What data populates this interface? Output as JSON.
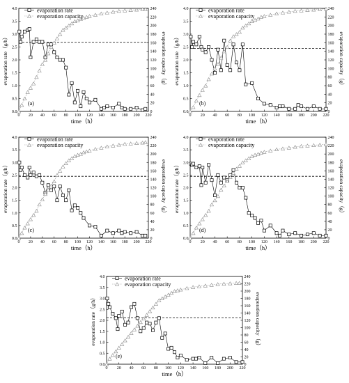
{
  "chart_data": [
    {
      "type": "line",
      "panel_label": "(a)",
      "xlabel": "time（h）",
      "ylabel": "evaporation rate（g/h）",
      "y2label": "evaporation capacity（g）",
      "xlim": [
        0,
        220
      ],
      "ylim": [
        0,
        4.0
      ],
      "y2lim": [
        0,
        240
      ],
      "xticks": [
        0,
        20,
        40,
        60,
        80,
        100,
        120,
        140,
        160,
        180,
        200,
        220
      ],
      "yticks": [
        0.0,
        0.5,
        1.0,
        1.5,
        2.0,
        2.5,
        3.0,
        3.5,
        4.0
      ],
      "y2ticks": [
        0,
        20,
        40,
        60,
        80,
        100,
        120,
        140,
        160,
        180,
        200,
        220,
        240
      ],
      "legend": [
        "evaporation rate",
        "evaporation capacity"
      ],
      "reference_line": 2.68,
      "series": [
        {
          "name": "evaporation rate",
          "axis": "left",
          "marker": "square",
          "x": [
            1,
            3,
            5,
            10,
            15,
            18,
            20,
            25,
            30,
            35,
            40,
            45,
            50,
            55,
            60,
            65,
            70,
            75,
            80,
            85,
            90,
            95,
            100,
            105,
            110,
            115,
            120,
            130,
            140,
            145,
            150,
            160,
            170,
            175,
            180,
            190,
            200,
            210,
            215
          ],
          "y": [
            3.1,
            2.7,
            2.9,
            3.1,
            3.15,
            3.2,
            2.1,
            2.7,
            2.8,
            2.7,
            2.7,
            2.1,
            2.6,
            2.6,
            2.3,
            2.1,
            2.0,
            2.0,
            1.7,
            0.65,
            1.1,
            0.35,
            0.8,
            0.2,
            0.75,
            0.5,
            0.35,
            0.45,
            0.1,
            0.15,
            0.2,
            0.15,
            0.3,
            0.15,
            0.1,
            0.1,
            0.15,
            0.05,
            0.1
          ]
        },
        {
          "name": "evaporation capacity",
          "axis": "right",
          "marker": "triangle",
          "x": [
            0,
            5,
            10,
            15,
            20,
            25,
            30,
            35,
            40,
            45,
            50,
            55,
            60,
            65,
            70,
            75,
            80,
            85,
            90,
            95,
            100,
            105,
            110,
            115,
            120,
            130,
            140,
            150,
            160,
            170,
            180,
            190,
            200,
            210,
            215
          ],
          "y": [
            0,
            15,
            30,
            45,
            55,
            65,
            80,
            95,
            110,
            120,
            135,
            150,
            160,
            170,
            180,
            190,
            195,
            200,
            205,
            210,
            212,
            215,
            218,
            220,
            222,
            225,
            228,
            230,
            232,
            234,
            235,
            236,
            237,
            238,
            238
          ]
        }
      ]
    },
    {
      "type": "line",
      "panel_label": "(b)",
      "xlabel": "time（h）",
      "ylabel": "evaporation rate（g/h）",
      "y2label": "evaporation capacity（g）",
      "xlim": [
        0,
        220
      ],
      "ylim": [
        0,
        4.0
      ],
      "y2lim": [
        0,
        240
      ],
      "xticks": [
        0,
        20,
        40,
        60,
        80,
        100,
        120,
        140,
        160,
        180,
        200,
        220
      ],
      "yticks": [
        0.0,
        0.5,
        1.0,
        1.5,
        2.0,
        2.5,
        3.0,
        3.5,
        4.0
      ],
      "y2ticks": [
        0,
        20,
        40,
        60,
        80,
        100,
        120,
        140,
        160,
        180,
        200,
        220,
        240
      ],
      "legend": [
        "evaporation rate",
        "evaporation capacity"
      ],
      "reference_line": 2.45,
      "series": [
        {
          "name": "evaporation rate",
          "axis": "left",
          "marker": "square",
          "x": [
            1,
            3,
            5,
            10,
            15,
            18,
            20,
            25,
            30,
            35,
            40,
            45,
            50,
            55,
            60,
            65,
            70,
            75,
            80,
            85,
            90,
            100,
            110,
            120,
            130,
            140,
            145,
            150,
            160,
            170,
            175,
            180,
            190,
            200,
            210,
            220
          ],
          "y": [
            2.9,
            2.5,
            2.7,
            2.6,
            2.9,
            2.5,
            2.4,
            2.3,
            2.5,
            2.0,
            1.5,
            2.4,
            1.6,
            2.75,
            1.8,
            1.6,
            2.6,
            1.9,
            1.6,
            2.6,
            1.05,
            1.1,
            0.5,
            0.3,
            0.25,
            0.15,
            0.2,
            0.2,
            0.1,
            0.1,
            0.25,
            0.2,
            0.1,
            0.2,
            0.1,
            0.1
          ]
        },
        {
          "name": "evaporation capacity",
          "axis": "right",
          "marker": "triangle",
          "x": [
            0,
            5,
            10,
            15,
            20,
            25,
            30,
            35,
            40,
            45,
            50,
            55,
            60,
            65,
            70,
            75,
            80,
            85,
            90,
            95,
            100,
            105,
            110,
            115,
            120,
            130,
            140,
            150,
            160,
            170,
            180,
            190,
            200,
            210,
            220
          ],
          "y": [
            0,
            10,
            25,
            38,
            50,
            60,
            75,
            88,
            100,
            110,
            125,
            140,
            150,
            165,
            175,
            180,
            185,
            195,
            200,
            205,
            210,
            213,
            216,
            220,
            222,
            225,
            228,
            230,
            232,
            234,
            235,
            236,
            237,
            238,
            239
          ]
        }
      ]
    },
    {
      "type": "line",
      "panel_label": "(c)",
      "xlabel": "time（h）",
      "ylabel": "evaporation rate（g/h）",
      "y2label": "evaporation capacity（g）",
      "xlim": [
        0,
        220
      ],
      "ylim": [
        0,
        4.0
      ],
      "y2lim": [
        0,
        240
      ],
      "xticks": [
        0,
        20,
        40,
        60,
        80,
        100,
        120,
        140,
        160,
        180,
        200,
        220
      ],
      "yticks": [
        0.0,
        0.5,
        1.0,
        1.5,
        2.0,
        2.5,
        3.0,
        3.5,
        4.0
      ],
      "y2ticks": [
        0,
        20,
        40,
        60,
        80,
        100,
        120,
        140,
        160,
        180,
        200,
        220,
        240
      ],
      "legend": [
        "evaporation rate",
        "evaporation capacity"
      ],
      "reference_line": 2.45,
      "series": [
        {
          "name": "evaporation rate",
          "axis": "left",
          "marker": "square",
          "x": [
            1,
            3,
            5,
            10,
            15,
            18,
            20,
            25,
            30,
            35,
            40,
            45,
            50,
            55,
            60,
            65,
            70,
            75,
            80,
            85,
            90,
            95,
            100,
            105,
            110,
            120,
            130,
            140,
            150,
            160,
            170,
            175,
            180,
            190,
            200,
            210,
            215
          ],
          "y": [
            3.0,
            2.7,
            2.8,
            2.5,
            2.4,
            2.8,
            2.5,
            2.6,
            2.45,
            2.5,
            2.2,
            1.8,
            2.1,
            1.9,
            2.05,
            1.5,
            2.05,
            1.7,
            1.5,
            1.9,
            1.1,
            1.3,
            1.2,
            1.0,
            0.8,
            0.5,
            0.45,
            0.1,
            0.3,
            0.2,
            0.3,
            0.2,
            0.25,
            0.2,
            0.25,
            0.1,
            0.1
          ]
        },
        {
          "name": "evaporation capacity",
          "axis": "right",
          "marker": "triangle",
          "x": [
            0,
            5,
            10,
            15,
            20,
            25,
            30,
            35,
            40,
            45,
            50,
            55,
            60,
            65,
            70,
            75,
            80,
            85,
            90,
            95,
            100,
            105,
            110,
            115,
            120,
            130,
            140,
            150,
            160,
            170,
            180,
            190,
            200,
            210,
            215
          ],
          "y": [
            0,
            12,
            25,
            35,
            45,
            55,
            65,
            80,
            92,
            105,
            115,
            125,
            135,
            150,
            160,
            170,
            178,
            185,
            190,
            195,
            198,
            200,
            204,
            206,
            208,
            212,
            215,
            218,
            220,
            222,
            224,
            225,
            226,
            227,
            228
          ]
        }
      ]
    },
    {
      "type": "line",
      "panel_label": "(d)",
      "xlabel": "time（h）",
      "ylabel": "evaporation rate（g/h）",
      "y2label": "evaporation capacity（g）",
      "xlim": [
        0,
        220
      ],
      "ylim": [
        0,
        4.0
      ],
      "y2lim": [
        0,
        240
      ],
      "xticks": [
        0,
        20,
        40,
        60,
        80,
        100,
        120,
        140,
        160,
        180,
        200,
        220
      ],
      "yticks": [
        0.0,
        0.5,
        1.0,
        1.5,
        2.0,
        2.5,
        3.0,
        3.5,
        4.0
      ],
      "y2ticks": [
        0,
        20,
        40,
        60,
        80,
        100,
        120,
        140,
        160,
        180,
        200,
        220,
        240
      ],
      "legend": [
        "evaporation rate",
        "evaporation capacity"
      ],
      "reference_line": 2.45,
      "series": [
        {
          "name": "evaporation rate",
          "axis": "left",
          "marker": "square",
          "x": [
            1,
            3,
            5,
            10,
            15,
            18,
            20,
            25,
            30,
            35,
            40,
            45,
            50,
            55,
            60,
            65,
            70,
            75,
            80,
            85,
            90,
            95,
            100,
            105,
            110,
            115,
            120,
            130,
            140,
            145,
            150,
            160,
            170,
            180,
            190,
            200,
            210,
            220
          ],
          "y": [
            2.95,
            2.9,
            2.95,
            2.8,
            2.85,
            2.1,
            2.8,
            2.2,
            2.9,
            2.3,
            1.7,
            2.5,
            2.2,
            2.4,
            2.3,
            2.5,
            2.7,
            2.2,
            2.0,
            2.0,
            1.6,
            1.0,
            0.9,
            0.8,
            0.6,
            0.7,
            0.3,
            0.5,
            0.2,
            0.1,
            0.3,
            0.15,
            0.2,
            0.1,
            0.15,
            0.2,
            0.1,
            0.1
          ]
        },
        {
          "name": "evaporation capacity",
          "axis": "right",
          "marker": "triangle",
          "x": [
            0,
            5,
            10,
            15,
            20,
            25,
            30,
            35,
            40,
            45,
            50,
            55,
            60,
            65,
            70,
            75,
            80,
            85,
            90,
            95,
            100,
            105,
            110,
            115,
            120,
            130,
            140,
            150,
            160,
            170,
            180,
            190,
            200,
            210,
            220
          ],
          "y": [
            0,
            12,
            25,
            35,
            45,
            55,
            65,
            80,
            90,
            100,
            115,
            125,
            135,
            145,
            155,
            165,
            172,
            180,
            185,
            190,
            195,
            198,
            200,
            203,
            205,
            208,
            211,
            213,
            215,
            217,
            219,
            220,
            221,
            222,
            223
          ]
        }
      ]
    },
    {
      "type": "line",
      "panel_label": "(e)",
      "xlabel": "time（h）",
      "ylabel": "evaporation rate（g/h）",
      "y2label": "evaporation capacity（g）",
      "xlim": [
        0,
        220
      ],
      "ylim": [
        0,
        4.0
      ],
      "y2lim": [
        0,
        240
      ],
      "xticks": [
        0,
        20,
        40,
        60,
        80,
        100,
        120,
        140,
        160,
        180,
        200,
        220
      ],
      "yticks": [
        0.0,
        0.5,
        1.0,
        1.5,
        2.0,
        2.5,
        3.0,
        3.5,
        4.0
      ],
      "y2ticks": [
        0,
        20,
        40,
        60,
        80,
        100,
        120,
        140,
        160,
        180,
        200,
        220,
        240
      ],
      "legend": [
        "evaporation rate",
        "evaporation capacity"
      ],
      "reference_line": 2.12,
      "series": [
        {
          "name": "evaporation rate",
          "axis": "left",
          "marker": "square",
          "x": [
            1,
            3,
            5,
            10,
            15,
            18,
            20,
            25,
            30,
            35,
            40,
            45,
            50,
            55,
            60,
            65,
            70,
            75,
            80,
            85,
            90,
            95,
            100,
            105,
            110,
            115,
            120,
            130,
            140,
            145,
            150,
            160,
            170,
            180,
            190,
            200,
            210,
            220
          ],
          "y": [
            3.0,
            2.75,
            2.6,
            2.3,
            2.1,
            1.6,
            2.2,
            2.4,
            1.8,
            1.9,
            2.6,
            2.75,
            2.1,
            1.5,
            1.65,
            1.9,
            1.85,
            1.55,
            1.9,
            2.1,
            1.2,
            1.4,
            0.7,
            0.75,
            0.55,
            0.3,
            0.4,
            0.2,
            0.25,
            0.25,
            0.3,
            0.05,
            0.3,
            0.05,
            0.25,
            0.3,
            0.1,
            0.1
          ]
        },
        {
          "name": "evaporation capacity",
          "axis": "right",
          "marker": "triangle",
          "x": [
            0,
            5,
            10,
            15,
            20,
            25,
            30,
            35,
            40,
            45,
            50,
            55,
            60,
            65,
            70,
            75,
            80,
            85,
            90,
            95,
            100,
            105,
            110,
            115,
            120,
            130,
            140,
            150,
            160,
            170,
            180,
            190,
            200,
            210,
            215
          ],
          "y": [
            0,
            15,
            25,
            35,
            45,
            55,
            65,
            75,
            85,
            95,
            105,
            115,
            125,
            135,
            145,
            155,
            165,
            175,
            180,
            185,
            190,
            195,
            200,
            202,
            204,
            208,
            211,
            213,
            215,
            217,
            219,
            220,
            221,
            222,
            222
          ]
        }
      ]
    }
  ]
}
